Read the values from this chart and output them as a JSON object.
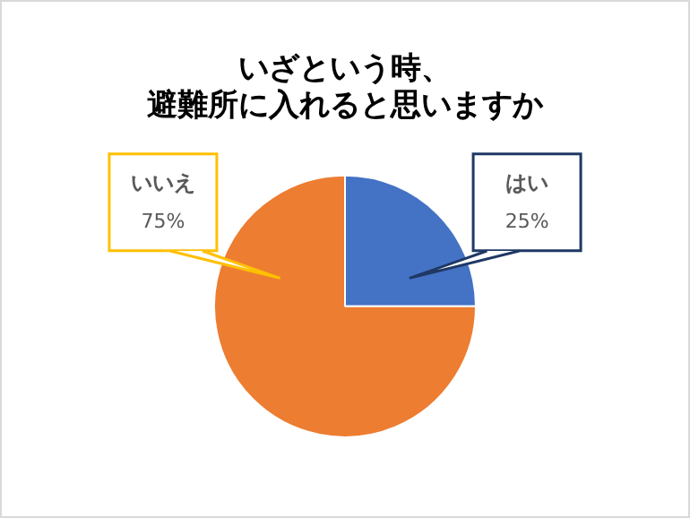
{
  "chart_data": {
    "type": "pie",
    "title": "いざという時、避難所に入れると思いますか",
    "categories": [
      "はい",
      "いいえ"
    ],
    "values": [
      25,
      75
    ],
    "colors": [
      "#4472c4",
      "#ed7d31"
    ],
    "data_labels": true,
    "value_labels": [
      "25%",
      "75%"
    ],
    "legend": false
  }
}
